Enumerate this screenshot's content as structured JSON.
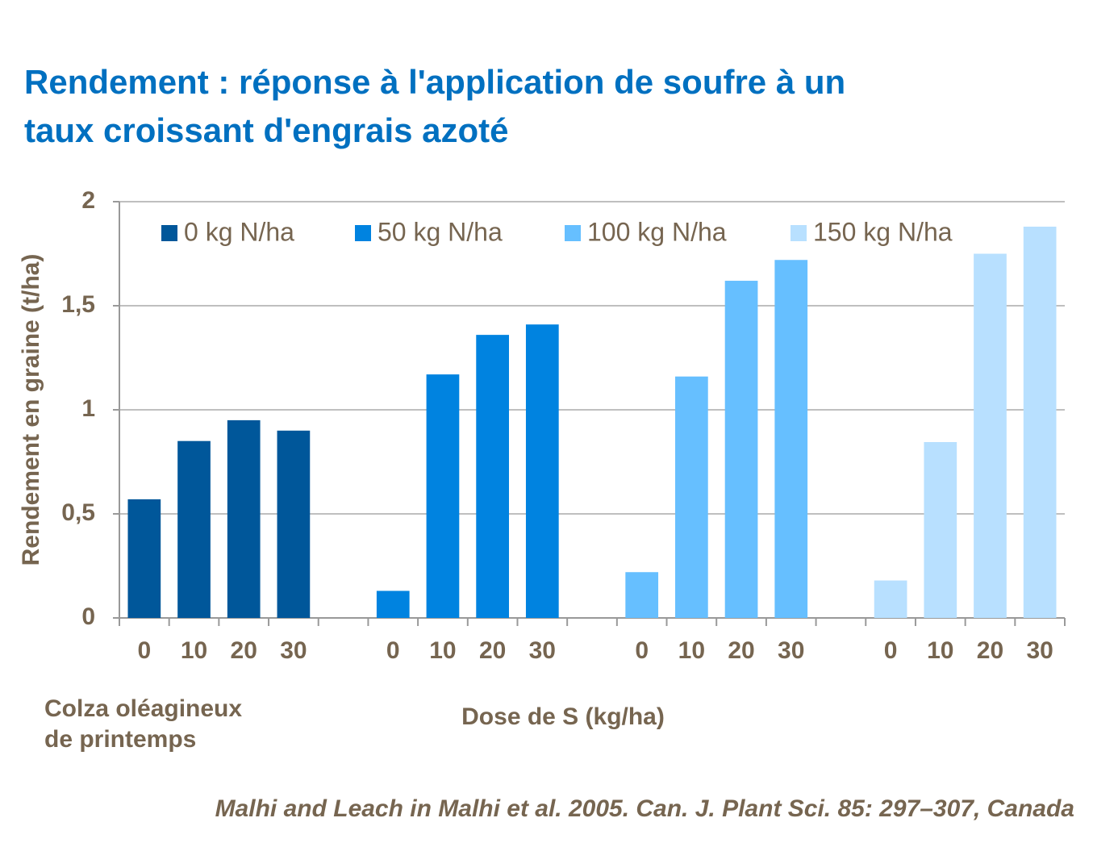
{
  "chart_data": {
    "type": "bar",
    "title": [
      "Rendement : réponse à l'application de soufre à un",
      "taux croissant d'engrais azoté"
    ],
    "y_label": "Rendement en graine (t/ha)",
    "x_label": "Dose de S (kg/ha)",
    "annotation": [
      "Colza oléagineux",
      "de printemps"
    ],
    "source": "Malhi and Leach in Malhi et al. 2005. Can. J. Plant Sci. 85: 297–307, Canada",
    "categories": [
      "0",
      "10",
      "20",
      "30"
    ],
    "series": [
      {
        "name": "0 kg N/ha",
        "color": "#00579a",
        "values": [
          0.57,
          0.85,
          0.95,
          0.9
        ]
      },
      {
        "name": "50 kg N/ha",
        "color": "#0083e0",
        "values": [
          0.13,
          1.17,
          1.36,
          1.41
        ]
      },
      {
        "name": "100 kg N/ha",
        "color": "#66bfff",
        "values": [
          0.22,
          1.16,
          1.62,
          1.72
        ]
      },
      {
        "name": "150 kg N/ha",
        "color": "#b8e0ff",
        "values": [
          0.18,
          0.845,
          1.75,
          1.88
        ]
      }
    ],
    "ylim": [
      0,
      2
    ],
    "yticks": [
      0,
      {
        "value": 0.5,
        "label": "0,5"
      },
      1,
      {
        "value": 1.5,
        "label": "1,5"
      },
      2
    ],
    "grid": true,
    "legend": "top"
  }
}
